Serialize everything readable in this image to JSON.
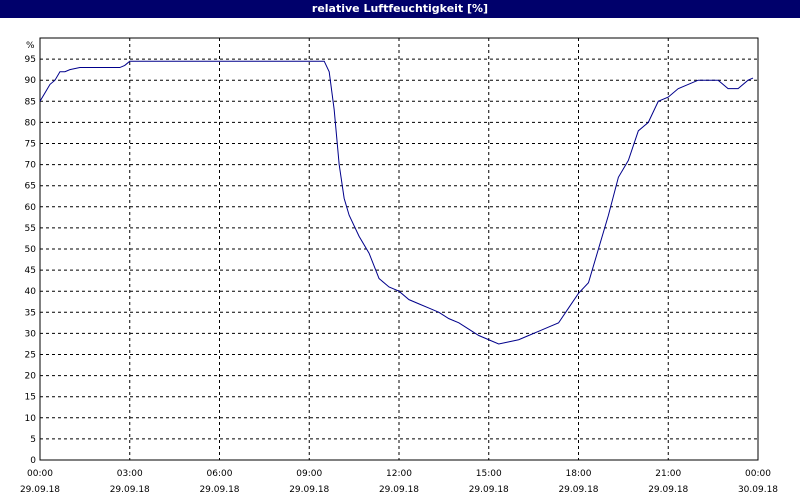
{
  "chart_data": {
    "type": "line",
    "title": "relative Luftfeuchtigkeit [%]",
    "y_unit": "%",
    "ylim": [
      0,
      100
    ],
    "y_ticks": [
      0,
      5,
      10,
      15,
      20,
      25,
      30,
      35,
      40,
      45,
      50,
      55,
      60,
      65,
      70,
      75,
      80,
      85,
      90,
      95
    ],
    "grid": true,
    "x_ticks": [
      {
        "time": "00:00",
        "date": "29.09.18"
      },
      {
        "time": "03:00",
        "date": "29.09.18"
      },
      {
        "time": "06:00",
        "date": "29.09.18"
      },
      {
        "time": "09:00",
        "date": "29.09.18"
      },
      {
        "time": "12:00",
        "date": "29.09.18"
      },
      {
        "time": "15:00",
        "date": "29.09.18"
      },
      {
        "time": "18:00",
        "date": "29.09.18"
      },
      {
        "time": "21:00",
        "date": "29.09.18"
      },
      {
        "time": "00:00",
        "date": "30.09.18"
      }
    ],
    "colors": {
      "line": "#00008b",
      "grid": "#000000",
      "titlebar": "#00006b"
    },
    "series": [
      {
        "x": [
          "29.09.18 00:00",
          "29.09.18 00:10",
          "29.09.18 00:20",
          "29.09.18 00:30",
          "29.09.18 00:40",
          "29.09.18 00:50",
          "29.09.18 01:00",
          "29.09.18 01:20",
          "29.09.18 02:00",
          "29.09.18 02:40",
          "29.09.18 02:50",
          "29.09.18 03:00",
          "29.09.18 04:00",
          "29.09.18 05:00",
          "29.09.18 06:00",
          "29.09.18 07:00",
          "29.09.18 08:00",
          "29.09.18 09:00",
          "29.09.18 09:20",
          "29.09.18 09:30",
          "29.09.18 09:40",
          "29.09.18 09:50",
          "29.09.18 10:00",
          "29.09.18 10:10",
          "29.09.18 10:20",
          "29.09.18 10:40",
          "29.09.18 11:00",
          "29.09.18 11:20",
          "29.09.18 11:40",
          "29.09.18 12:00",
          "29.09.18 12:20",
          "29.09.18 12:40",
          "29.09.18 13:00",
          "29.09.18 13:20",
          "29.09.18 13:40",
          "29.09.18 14:00",
          "29.09.18 14:20",
          "29.09.18 14:40",
          "29.09.18 15:00",
          "29.09.18 15:20",
          "29.09.18 15:40",
          "29.09.18 16:00",
          "29.09.18 16:20",
          "29.09.18 16:40",
          "29.09.18 17:00",
          "29.09.18 17:20",
          "29.09.18 17:40",
          "29.09.18 18:00",
          "29.09.18 18:20",
          "29.09.18 18:40",
          "29.09.18 19:00",
          "29.09.18 19:20",
          "29.09.18 19:40",
          "29.09.18 20:00",
          "29.09.18 20:20",
          "29.09.18 20:40",
          "29.09.18 21:00",
          "29.09.18 21:20",
          "29.09.18 21:40",
          "29.09.18 22:00",
          "29.09.18 22:40",
          "29.09.18 23:00",
          "29.09.18 23:20",
          "29.09.18 23:40",
          "29.09.18 23:50"
        ],
        "values": [
          85,
          87,
          89,
          90,
          92,
          92,
          92.5,
          93,
          93,
          93,
          93.5,
          94.5,
          94.5,
          94.5,
          94.5,
          94.5,
          94.5,
          94.5,
          94.5,
          94.5,
          92,
          83,
          70,
          62,
          58,
          53,
          49,
          43,
          41,
          40,
          38,
          37,
          36,
          35,
          33.5,
          32.5,
          31,
          29.5,
          28.5,
          27.5,
          28,
          28.5,
          29.5,
          30.5,
          31.5,
          32.5,
          36,
          39.5,
          42,
          50,
          58,
          67,
          71,
          78,
          80,
          85,
          86,
          88,
          89,
          90,
          90,
          88,
          88,
          90,
          90.5
        ]
      }
    ]
  }
}
